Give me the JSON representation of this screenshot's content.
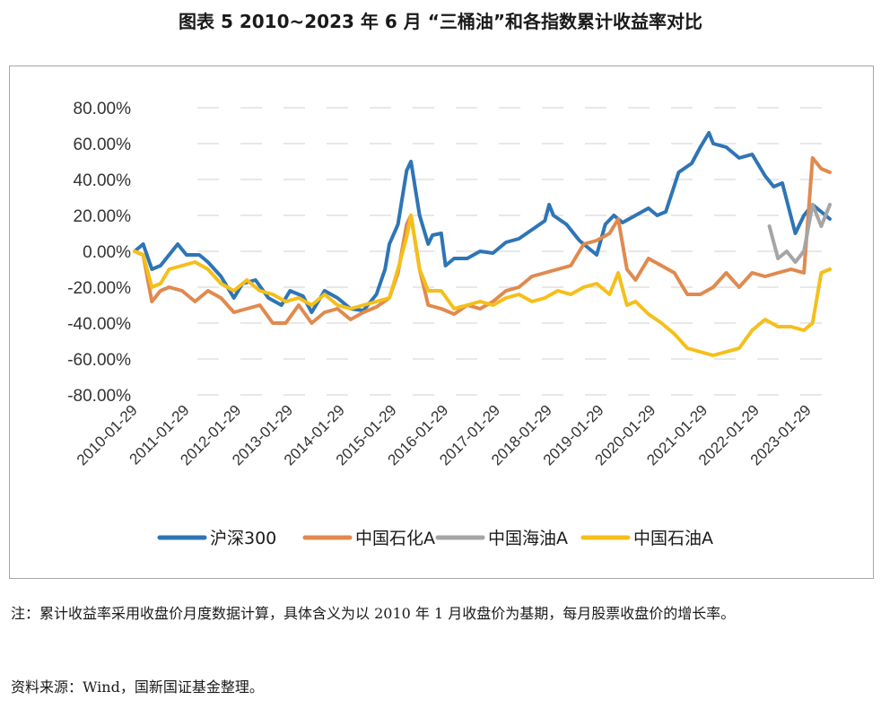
{
  "page": {
    "title": "图表 5  2010~2023 年 6 月 “三桶油”和各指数累计收益率对比",
    "note": "注：累计收益率采用收盘价月度数据计算，具体含义为以 2010 年 1 月收盘价为基期，每月股票收盘价的增长率。",
    "source": "资料来源：Wind，国新国证基金整理。"
  },
  "chart_data": {
    "type": "line",
    "xlabel": "",
    "ylabel": "",
    "ylim": [
      -80,
      80
    ],
    "y_ticks": [
      80,
      60,
      40,
      20,
      0,
      -20,
      -40,
      -60,
      -80
    ],
    "y_tick_labels": [
      "80.00%",
      "60.00%",
      "40.00%",
      "20.00%",
      "0.00%",
      "-20.00%",
      "-40.00%",
      "-60.00%",
      "-80.00%"
    ],
    "x_tick_labels": [
      "2010-01-29",
      "2011-01-29",
      "2012-01-29",
      "2013-01-29",
      "2014-01-29",
      "2015-01-29",
      "2016-01-29",
      "2017-01-29",
      "2018-01-29",
      "2019-01-29",
      "2020-01-29",
      "2021-01-29",
      "2022-01-29",
      "2023-01-29"
    ],
    "x_range": [
      "2010-01",
      "2023-06"
    ],
    "grid": "horizontal dashed",
    "legend_position": "bottom",
    "series": [
      {
        "name": "沪深300",
        "color": "#2e75b6",
        "points": [
          [
            "2010-01",
            0
          ],
          [
            "2010-03",
            4
          ],
          [
            "2010-05",
            -10
          ],
          [
            "2010-07",
            -8
          ],
          [
            "2010-09",
            -2
          ],
          [
            "2010-11",
            4
          ],
          [
            "2011-01",
            -2
          ],
          [
            "2011-04",
            -2
          ],
          [
            "2011-06",
            -6
          ],
          [
            "2011-09",
            -14
          ],
          [
            "2011-12",
            -26
          ],
          [
            "2012-02",
            -18
          ],
          [
            "2012-05",
            -16
          ],
          [
            "2012-08",
            -26
          ],
          [
            "2012-11",
            -30
          ],
          [
            "2013-01",
            -22
          ],
          [
            "2013-04",
            -25
          ],
          [
            "2013-06",
            -34
          ],
          [
            "2013-09",
            -22
          ],
          [
            "2013-12",
            -26
          ],
          [
            "2014-03",
            -32
          ],
          [
            "2014-06",
            -33
          ],
          [
            "2014-09",
            -24
          ],
          [
            "2014-11",
            -10
          ],
          [
            "2014-12",
            4
          ],
          [
            "2015-02",
            15
          ],
          [
            "2015-04",
            45
          ],
          [
            "2015-05",
            50
          ],
          [
            "2015-07",
            20
          ],
          [
            "2015-09",
            4
          ],
          [
            "2015-10",
            9
          ],
          [
            "2015-12",
            10
          ],
          [
            "2016-01",
            -8
          ],
          [
            "2016-03",
            -4
          ],
          [
            "2016-06",
            -4
          ],
          [
            "2016-09",
            0
          ],
          [
            "2016-12",
            -1
          ],
          [
            "2017-03",
            5
          ],
          [
            "2017-06",
            7
          ],
          [
            "2017-09",
            12
          ],
          [
            "2017-12",
            17
          ],
          [
            "2018-01",
            26
          ],
          [
            "2018-02",
            20
          ],
          [
            "2018-05",
            15
          ],
          [
            "2018-08",
            6
          ],
          [
            "2018-12",
            -2
          ],
          [
            "2019-02",
            15
          ],
          [
            "2019-04",
            20
          ],
          [
            "2019-06",
            16
          ],
          [
            "2019-09",
            20
          ],
          [
            "2019-12",
            24
          ],
          [
            "2020-02",
            20
          ],
          [
            "2020-04",
            22
          ],
          [
            "2020-07",
            44
          ],
          [
            "2020-10",
            49
          ],
          [
            "2020-12",
            58
          ],
          [
            "2021-02",
            66
          ],
          [
            "2021-03",
            60
          ],
          [
            "2021-06",
            58
          ],
          [
            "2021-09",
            52
          ],
          [
            "2021-12",
            54
          ],
          [
            "2022-03",
            42
          ],
          [
            "2022-05",
            36
          ],
          [
            "2022-07",
            38
          ],
          [
            "2022-10",
            10
          ],
          [
            "2022-12",
            20
          ],
          [
            "2023-02",
            26
          ],
          [
            "2023-04",
            22
          ],
          [
            "2023-06",
            18
          ]
        ]
      },
      {
        "name": "中国石化A",
        "color": "#e08a4f",
        "points": [
          [
            "2010-01",
            0
          ],
          [
            "2010-03",
            -2
          ],
          [
            "2010-05",
            -28
          ],
          [
            "2010-07",
            -22
          ],
          [
            "2010-09",
            -20
          ],
          [
            "2010-12",
            -22
          ],
          [
            "2011-03",
            -28
          ],
          [
            "2011-06",
            -22
          ],
          [
            "2011-09",
            -26
          ],
          [
            "2011-12",
            -34
          ],
          [
            "2012-03",
            -32
          ],
          [
            "2012-06",
            -30
          ],
          [
            "2012-09",
            -40
          ],
          [
            "2012-12",
            -40
          ],
          [
            "2013-03",
            -30
          ],
          [
            "2013-06",
            -40
          ],
          [
            "2013-09",
            -34
          ],
          [
            "2013-12",
            -32
          ],
          [
            "2014-03",
            -38
          ],
          [
            "2014-06",
            -34
          ],
          [
            "2014-09",
            -31
          ],
          [
            "2014-12",
            -26
          ],
          [
            "2015-02",
            -12
          ],
          [
            "2015-04",
            15
          ],
          [
            "2015-05",
            20
          ],
          [
            "2015-07",
            -10
          ],
          [
            "2015-09",
            -30
          ],
          [
            "2015-12",
            -32
          ],
          [
            "2016-03",
            -35
          ],
          [
            "2016-06",
            -30
          ],
          [
            "2016-09",
            -32
          ],
          [
            "2016-12",
            -28
          ],
          [
            "2017-03",
            -22
          ],
          [
            "2017-06",
            -20
          ],
          [
            "2017-09",
            -14
          ],
          [
            "2017-12",
            -12
          ],
          [
            "2018-03",
            -10
          ],
          [
            "2018-06",
            -8
          ],
          [
            "2018-09",
            4
          ],
          [
            "2018-12",
            6
          ],
          [
            "2019-03",
            10
          ],
          [
            "2019-05",
            18
          ],
          [
            "2019-07",
            -10
          ],
          [
            "2019-09",
            -16
          ],
          [
            "2019-12",
            -4
          ],
          [
            "2020-03",
            -8
          ],
          [
            "2020-06",
            -12
          ],
          [
            "2020-09",
            -24
          ],
          [
            "2020-12",
            -24
          ],
          [
            "2021-03",
            -20
          ],
          [
            "2021-06",
            -12
          ],
          [
            "2021-09",
            -20
          ],
          [
            "2021-12",
            -12
          ],
          [
            "2022-03",
            -14
          ],
          [
            "2022-06",
            -12
          ],
          [
            "2022-09",
            -10
          ],
          [
            "2022-12",
            -12
          ],
          [
            "2023-02",
            52
          ],
          [
            "2023-04",
            46
          ],
          [
            "2023-06",
            44
          ]
        ]
      },
      {
        "name": "中国海油A",
        "color": "#a5a5a5",
        "points": [
          [
            "2022-04",
            14
          ],
          [
            "2022-06",
            -4
          ],
          [
            "2022-08",
            0
          ],
          [
            "2022-10",
            -6
          ],
          [
            "2022-12",
            0
          ],
          [
            "2023-02",
            26
          ],
          [
            "2023-04",
            14
          ],
          [
            "2023-06",
            26
          ]
        ]
      },
      {
        "name": "中国石油A",
        "color": "#f5bf1b",
        "points": [
          [
            "2010-01",
            0
          ],
          [
            "2010-03",
            -2
          ],
          [
            "2010-05",
            -20
          ],
          [
            "2010-07",
            -18
          ],
          [
            "2010-09",
            -10
          ],
          [
            "2010-12",
            -8
          ],
          [
            "2011-03",
            -6
          ],
          [
            "2011-06",
            -10
          ],
          [
            "2011-09",
            -18
          ],
          [
            "2011-12",
            -22
          ],
          [
            "2012-03",
            -16
          ],
          [
            "2012-06",
            -22
          ],
          [
            "2012-09",
            -24
          ],
          [
            "2012-12",
            -28
          ],
          [
            "2013-03",
            -26
          ],
          [
            "2013-06",
            -30
          ],
          [
            "2013-09",
            -24
          ],
          [
            "2013-12",
            -30
          ],
          [
            "2014-03",
            -32
          ],
          [
            "2014-06",
            -30
          ],
          [
            "2014-09",
            -28
          ],
          [
            "2014-12",
            -26
          ],
          [
            "2015-02",
            -10
          ],
          [
            "2015-04",
            8
          ],
          [
            "2015-05",
            20
          ],
          [
            "2015-07",
            -10
          ],
          [
            "2015-09",
            -22
          ],
          [
            "2015-12",
            -22
          ],
          [
            "2016-03",
            -32
          ],
          [
            "2016-06",
            -30
          ],
          [
            "2016-09",
            -28
          ],
          [
            "2016-12",
            -30
          ],
          [
            "2017-03",
            -26
          ],
          [
            "2017-06",
            -24
          ],
          [
            "2017-09",
            -28
          ],
          [
            "2017-12",
            -26
          ],
          [
            "2018-03",
            -22
          ],
          [
            "2018-06",
            -24
          ],
          [
            "2018-09",
            -20
          ],
          [
            "2018-12",
            -18
          ],
          [
            "2019-03",
            -24
          ],
          [
            "2019-05",
            -12
          ],
          [
            "2019-07",
            -30
          ],
          [
            "2019-09",
            -28
          ],
          [
            "2019-12",
            -35
          ],
          [
            "2020-03",
            -40
          ],
          [
            "2020-06",
            -46
          ],
          [
            "2020-09",
            -54
          ],
          [
            "2020-12",
            -56
          ],
          [
            "2021-03",
            -58
          ],
          [
            "2021-06",
            -56
          ],
          [
            "2021-09",
            -54
          ],
          [
            "2021-12",
            -44
          ],
          [
            "2022-03",
            -38
          ],
          [
            "2022-06",
            -42
          ],
          [
            "2022-09",
            -42
          ],
          [
            "2022-12",
            -44
          ],
          [
            "2023-02",
            -40
          ],
          [
            "2023-04",
            -12
          ],
          [
            "2023-06",
            -10
          ]
        ]
      }
    ]
  }
}
